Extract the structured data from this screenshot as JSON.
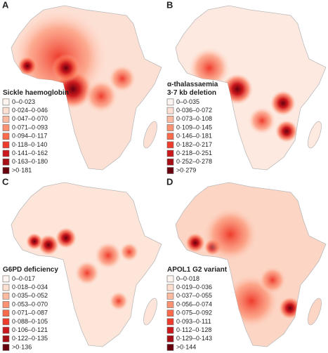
{
  "panels": [
    {
      "label": "A",
      "title": [
        "Sickle haemoglobin"
      ],
      "legend": [
        "0–0·023",
        "0·024–0·046",
        "0·047–0·070",
        "0·071–0·093",
        "0·094–0·117",
        "0·118–0·140",
        "0·141–0·162",
        "0·163–0·180",
        ">0·181"
      ]
    },
    {
      "label": "B",
      "title": [
        "α-thalassaemia",
        "3·7 kb deletion"
      ],
      "legend": [
        "0–0·035",
        "0·036–0·072",
        "0·073–0·108",
        "0·109–0·145",
        "0·146–0·181",
        "0·182–0·217",
        "0·218–0·251",
        "0·252–0·278",
        ">0·279"
      ]
    },
    {
      "label": "C",
      "title": [
        "G6PD deficiency"
      ],
      "legend": [
        "0–0·017",
        "0·018–0·034",
        "0·035–0·052",
        "0·053–0·070",
        "0·071–0·087",
        "0·088–0·105",
        "0·106–0·121",
        "0·122–0·135",
        ">0·136"
      ]
    },
    {
      "label": "D",
      "title": [
        "APOL1 G2 variant"
      ],
      "legend": [
        "0–0·018",
        "0·019–0·036",
        "0·037–0·055",
        "0·056–0·074",
        "0·075–0·092",
        "0·093–0·111",
        "0·112–0·128",
        "0·129–0·143",
        ">0·144"
      ]
    }
  ]
}
